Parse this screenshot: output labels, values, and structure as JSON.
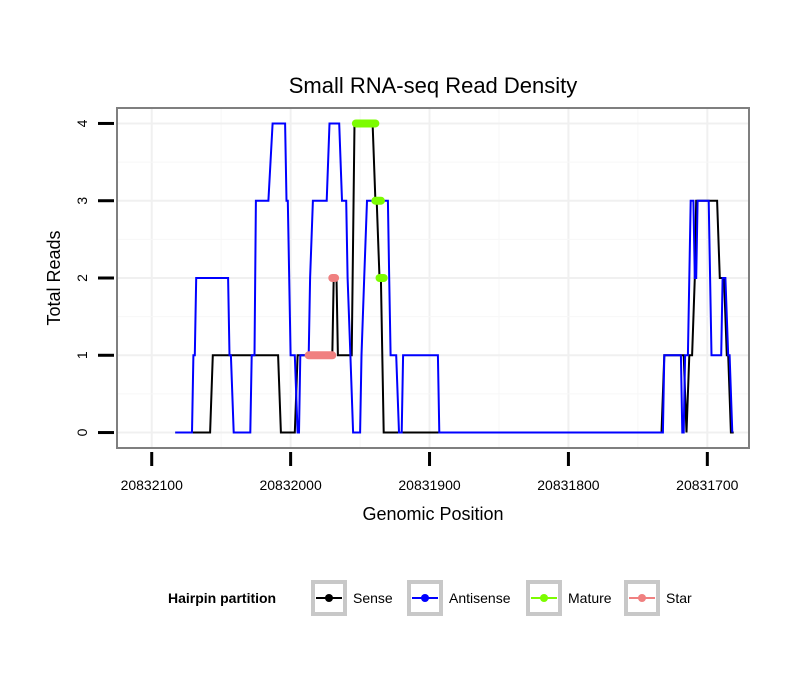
{
  "chart_data": {
    "type": "line",
    "title": "Small RNA-seq Read Density",
    "xlabel": "Genomic Position",
    "ylabel": "Total Reads",
    "xlim": [
      20832125,
      20831670
    ],
    "x_reversed": true,
    "ylim": [
      -0.2,
      4.2
    ],
    "xticks": [
      20832100,
      20832000,
      20831900,
      20831800,
      20831700
    ],
    "xtick_labels": [
      "20832100",
      "20832000",
      "20831900",
      "20831800",
      "20831700"
    ],
    "yticks": [
      0,
      1,
      2,
      3,
      4
    ],
    "ytick_labels": [
      "0",
      "1",
      "2",
      "3",
      "4"
    ],
    "grid": true,
    "legend": {
      "title": "Hairpin partition",
      "placement": "bottom",
      "entries": [
        "Sense",
        "Antisense",
        "Mature",
        "Star"
      ]
    },
    "series": [
      {
        "name": "Sense",
        "color": "#000000",
        "style": "step-line",
        "points": [
          [
            20832083,
            0
          ],
          [
            20832058,
            0
          ],
          [
            20832056,
            1
          ],
          [
            20832009,
            1
          ],
          [
            20832007,
            0
          ],
          [
            20831997,
            0
          ],
          [
            20831995,
            1
          ],
          [
            20831970,
            1
          ],
          [
            20831969,
            2
          ],
          [
            20831967,
            2
          ],
          [
            20831966,
            1
          ],
          [
            20831956,
            1
          ],
          [
            20831954,
            4
          ],
          [
            20831941,
            4
          ],
          [
            20831939,
            3
          ],
          [
            20831938,
            3
          ],
          [
            20831936,
            2
          ],
          [
            20831935,
            2
          ],
          [
            20831933,
            0
          ],
          [
            20831832,
            0
          ],
          [
            20831831,
            0
          ],
          [
            20831733,
            0
          ],
          [
            20831731,
            1
          ],
          [
            20831717,
            1
          ],
          [
            20831715,
            0
          ],
          [
            20831713,
            1
          ],
          [
            20831711,
            1
          ],
          [
            20831709,
            2
          ],
          [
            20831708,
            3
          ],
          [
            20831693,
            3
          ],
          [
            20831691,
            2
          ],
          [
            20831688,
            2
          ],
          [
            20831686,
            1
          ],
          [
            20831685,
            1
          ],
          [
            20831683,
            0
          ],
          [
            20831681,
            0
          ]
        ]
      },
      {
        "name": "Antisense",
        "color": "#0000ff",
        "style": "step-line",
        "points": [
          [
            20832083,
            0
          ],
          [
            20832071,
            0
          ],
          [
            20832070,
            1
          ],
          [
            20832069,
            1
          ],
          [
            20832068,
            2
          ],
          [
            20832045,
            2
          ],
          [
            20832044,
            1
          ],
          [
            20832043,
            1
          ],
          [
            20832041,
            0
          ],
          [
            20832029,
            0
          ],
          [
            20832028,
            1
          ],
          [
            20832026,
            1
          ],
          [
            20832025,
            3
          ],
          [
            20832016,
            3
          ],
          [
            20832013,
            4
          ],
          [
            20832004,
            4
          ],
          [
            20832003,
            3
          ],
          [
            20832002,
            3
          ],
          [
            20832000,
            1
          ],
          [
            20831997,
            1
          ],
          [
            20831995,
            0
          ],
          [
            20831994,
            0
          ],
          [
            20831993,
            1
          ],
          [
            20831987,
            1
          ],
          [
            20831986,
            2
          ],
          [
            20831984,
            3
          ],
          [
            20831974,
            3
          ],
          [
            20831972,
            4
          ],
          [
            20831965,
            4
          ],
          [
            20831963,
            3
          ],
          [
            20831960,
            3
          ],
          [
            20831959,
            2
          ],
          [
            20831957,
            1
          ],
          [
            20831955,
            0
          ],
          [
            20831950,
            0
          ],
          [
            20831949,
            1
          ],
          [
            20831947,
            2
          ],
          [
            20831945,
            3
          ],
          [
            20831930,
            3
          ],
          [
            20831929,
            2
          ],
          [
            20831928,
            1
          ],
          [
            20831924,
            1
          ],
          [
            20831922,
            0
          ],
          [
            20831920,
            0
          ],
          [
            20831919,
            1
          ],
          [
            20831894,
            1
          ],
          [
            20831893,
            0
          ],
          [
            20831732,
            0
          ],
          [
            20831731,
            1
          ],
          [
            20831719,
            1
          ],
          [
            20831718,
            0
          ],
          [
            20831717,
            0
          ],
          [
            20831716,
            1
          ],
          [
            20831714,
            1
          ],
          [
            20831712,
            3
          ],
          [
            20831710,
            3
          ],
          [
            20831709,
            2
          ],
          [
            20831708,
            2
          ],
          [
            20831707,
            3
          ],
          [
            20831699,
            3
          ],
          [
            20831697,
            1
          ],
          [
            20831690,
            1
          ],
          [
            20831689,
            2
          ],
          [
            20831687,
            2
          ],
          [
            20831685,
            1
          ],
          [
            20831684,
            1
          ],
          [
            20831682,
            0
          ]
        ]
      },
      {
        "name": "Mature",
        "color": "#7cfc00",
        "style": "segment",
        "segments": [
          [
            [
              20831953,
              4
            ],
            [
              20831939,
              4
            ]
          ],
          [
            [
              20831939,
              3
            ],
            [
              20831935,
              3
            ]
          ],
          [
            [
              20831936,
              2
            ],
            [
              20831933,
              2
            ]
          ]
        ]
      },
      {
        "name": "Star",
        "color": "#f08080",
        "style": "segment",
        "segments": [
          [
            [
              20831987,
              1
            ],
            [
              20831970,
              1
            ]
          ],
          [
            [
              20831970,
              2
            ],
            [
              20831968,
              2
            ]
          ]
        ]
      }
    ]
  }
}
